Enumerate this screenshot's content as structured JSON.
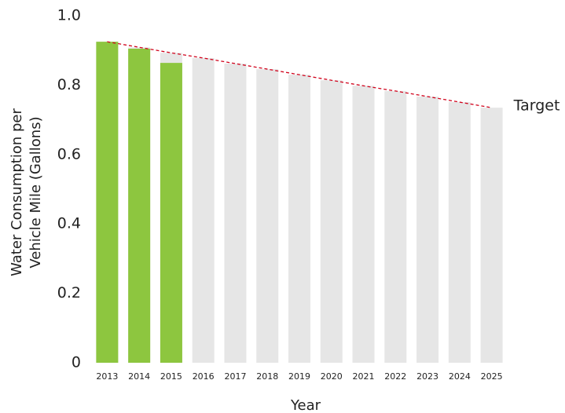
{
  "chart_data": {
    "type": "bar",
    "xlabel": "Year",
    "ylabel": [
      "Water Consumption per",
      "Vehicle Mile (Gallons)"
    ],
    "categories": [
      "2013",
      "2014",
      "2015",
      "2016",
      "2017",
      "2018",
      "2019",
      "2020",
      "2021",
      "2022",
      "2023",
      "2024",
      "2025"
    ],
    "series": [
      {
        "color": "#8dc63f",
        "values": [
          0.925,
          0.905,
          0.864,
          null,
          null,
          null,
          null,
          null,
          null,
          null,
          null,
          null,
          null
        ]
      },
      {
        "name": "Target",
        "color": "#d0021b",
        "bar_color": "#e6e6e6",
        "values": [
          0.925,
          0.909,
          0.893,
          0.878,
          0.862,
          0.846,
          0.83,
          0.814,
          0.798,
          0.783,
          0.767,
          0.751,
          0.735
        ]
      }
    ],
    "ylim": [
      0,
      1
    ],
    "yticks": [
      0,
      0.2,
      0.4,
      0.6,
      0.8,
      {
        "value": 1,
        "label": "1.0"
      }
    ],
    "grid": false
  }
}
